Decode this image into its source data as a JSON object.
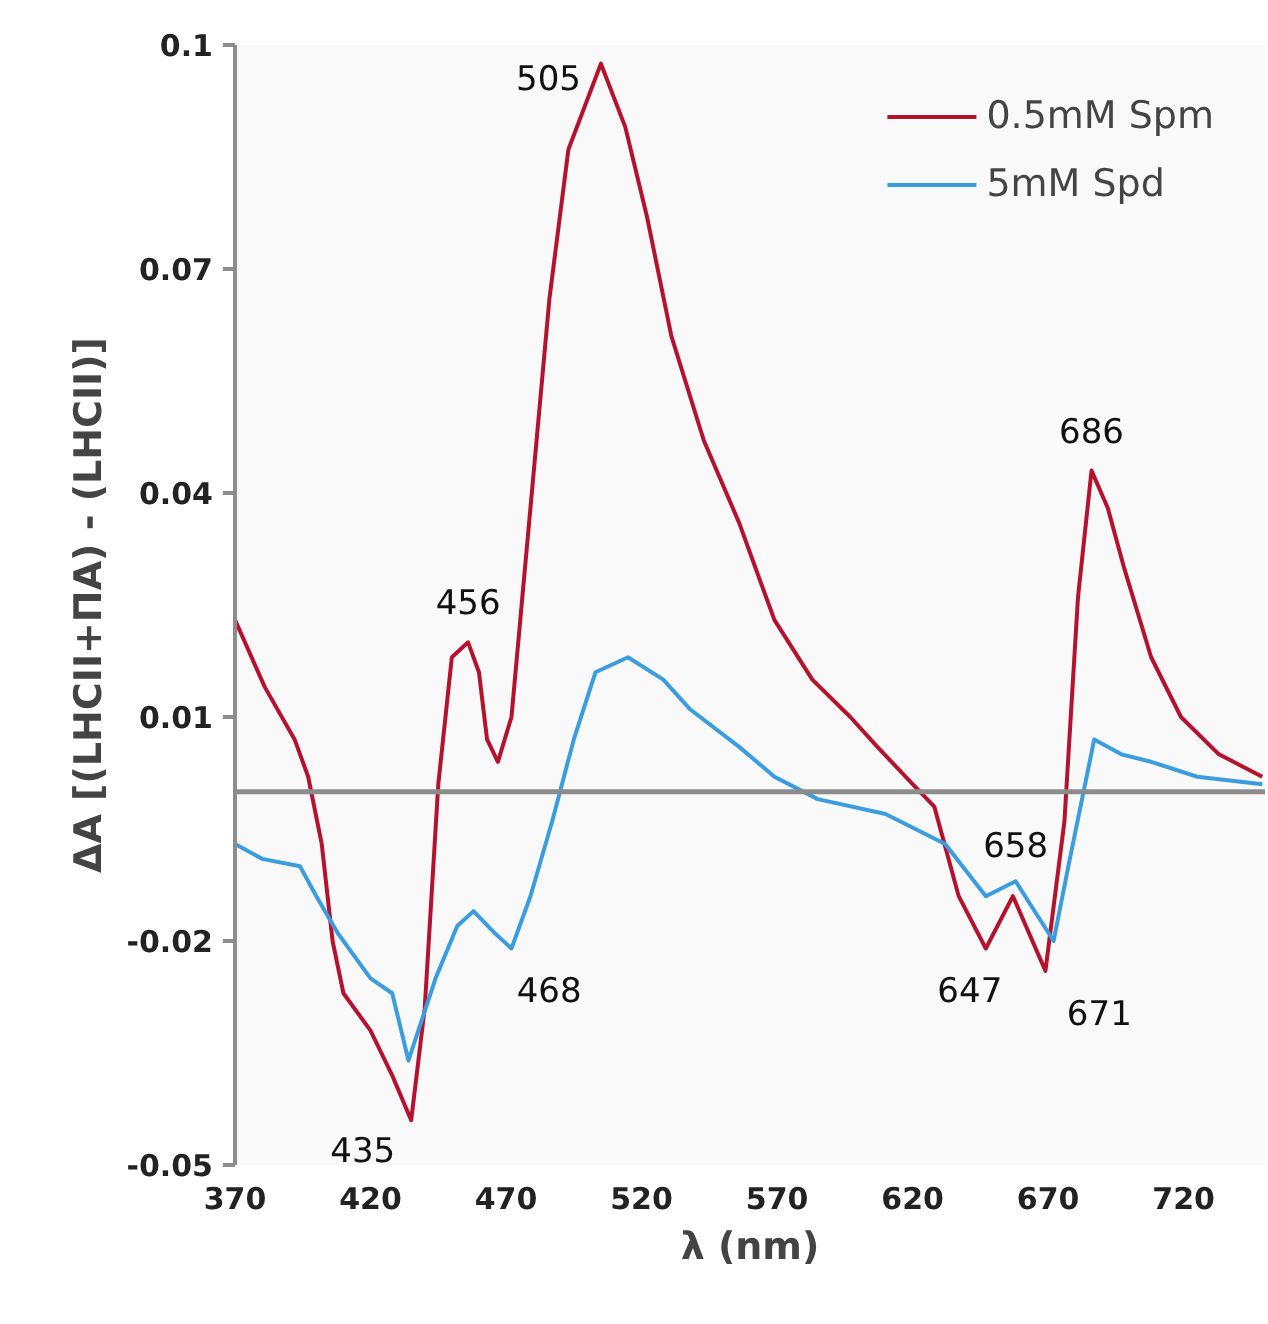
{
  "chart_data": {
    "type": "line",
    "xlabel": "λ (nm)",
    "ylabel": "ΔA [(LHCII+ΠA) - (LHCII)]",
    "xlim": [
      370,
      750
    ],
    "xticks": [
      370,
      420,
      470,
      520,
      570,
      620,
      670,
      720
    ],
    "ylim": [
      -0.05,
      0.1
    ],
    "yticks": [
      0.1,
      0.07,
      0.04,
      0.01,
      -0.02,
      -0.05
    ],
    "grid": false,
    "legend": "top right",
    "marker": "none",
    "line_style": "solid",
    "ref_lines": [
      {
        "axis": "y",
        "value": 0,
        "color": "#8c8c8c"
      }
    ],
    "series": [
      {
        "name": "0.5mM Spm",
        "color": "#b5122e",
        "x": [
          370,
          381,
          392,
          397,
          402,
          406,
          410,
          420,
          428,
          435,
          440,
          445,
          450,
          456,
          460,
          463,
          467,
          472,
          476,
          481,
          486,
          493,
          505,
          514,
          522,
          531,
          543,
          556,
          569,
          583,
          597,
          607,
          620,
          628,
          637,
          647,
          657,
          669,
          676,
          681,
          686,
          692,
          698,
          708,
          719,
          733,
          749
        ],
        "values": [
          0.023,
          0.014,
          0.007,
          0.002,
          -0.007,
          -0.02,
          -0.027,
          -0.032,
          -0.038,
          -0.044,
          -0.029,
          0.001,
          0.018,
          0.02,
          0.016,
          0.007,
          0.004,
          0.01,
          0.026,
          0.046,
          0.066,
          0.086,
          0.0975,
          0.089,
          0.077,
          0.061,
          0.047,
          0.036,
          0.023,
          0.015,
          0.01,
          0.006,
          0.001,
          -0.002,
          -0.014,
          -0.021,
          -0.014,
          -0.024,
          -0.004,
          0.026,
          0.043,
          0.038,
          0.03,
          0.018,
          0.01,
          0.005,
          0.002
        ]
      },
      {
        "name": "5mM Spd",
        "color": "#3b9de0",
        "x": [
          370,
          380,
          394,
          400,
          408,
          420,
          428,
          434,
          444,
          452,
          458,
          466,
          472,
          479,
          487,
          495,
          503,
          515,
          528,
          538,
          556,
          569,
          585,
          610,
          632,
          647,
          658,
          672,
          678,
          687,
          697,
          708,
          725,
          749
        ],
        "values": [
          -0.007,
          -0.009,
          -0.01,
          -0.014,
          -0.019,
          -0.025,
          -0.027,
          -0.036,
          -0.025,
          -0.018,
          -0.016,
          -0.019,
          -0.021,
          -0.014,
          -0.004,
          0.007,
          0.016,
          0.018,
          0.015,
          0.011,
          0.006,
          0.002,
          -0.001,
          -0.003,
          -0.007,
          -0.014,
          -0.012,
          -0.02,
          -0.009,
          0.007,
          0.005,
          0.004,
          0.002,
          0.001
        ]
      }
    ],
    "annotations": [
      {
        "text": "505",
        "x": 505,
        "y": 0.0975
      },
      {
        "text": "456",
        "x": 456,
        "y": 0.02
      },
      {
        "text": "686",
        "x": 686,
        "y": 0.043
      },
      {
        "text": "435",
        "x": 435,
        "y": -0.044
      },
      {
        "text": "468",
        "x": 468,
        "y": -0.021
      },
      {
        "text": "647",
        "x": 647,
        "y": -0.021
      },
      {
        "text": "671",
        "x": 671,
        "y": -0.024
      },
      {
        "text": "658",
        "x": 658,
        "y": -0.012
      }
    ]
  }
}
